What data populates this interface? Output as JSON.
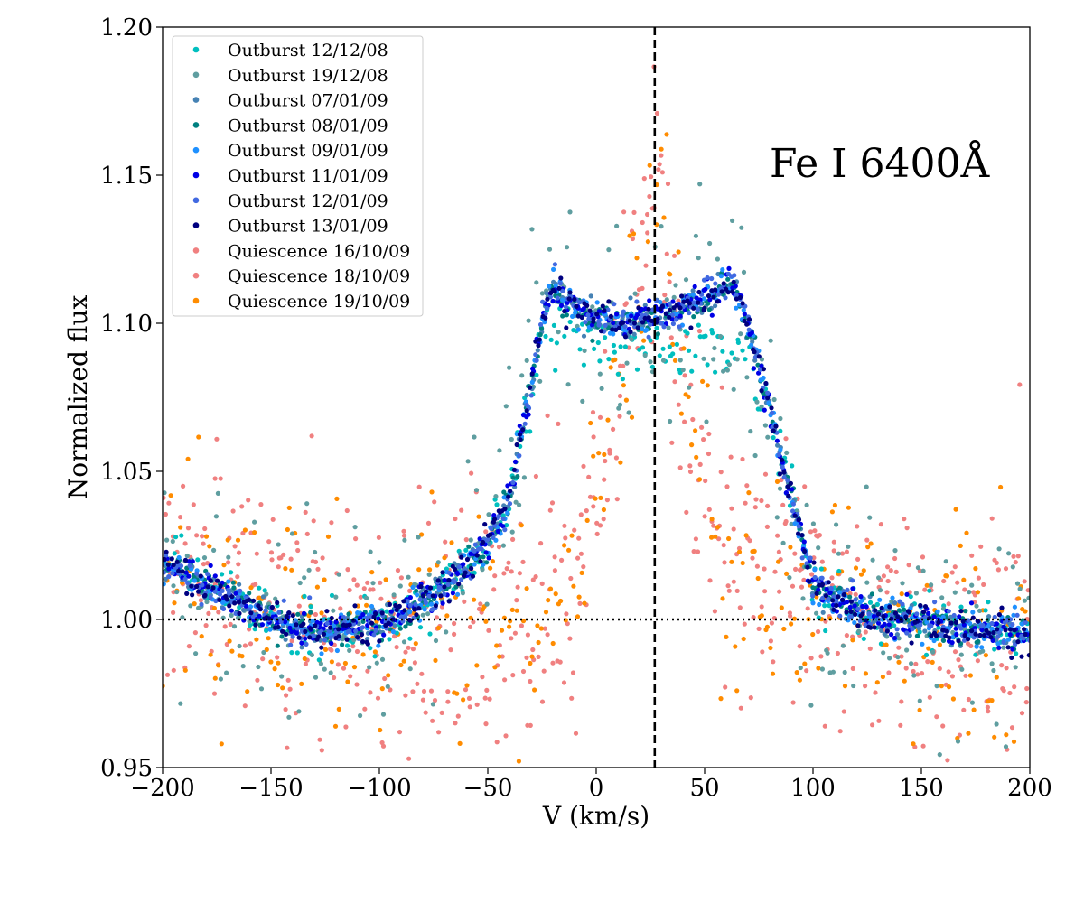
{
  "chart_data": {
    "type": "scatter",
    "title": "",
    "xlabel": "V (km/s)",
    "ylabel": "Normalized flux",
    "xlim": [
      -200,
      200
    ],
    "ylim": [
      0.95,
      1.2
    ],
    "xticks": [
      -200,
      -150,
      -100,
      -50,
      0,
      50,
      100,
      150,
      200
    ],
    "xtick_labels": [
      "−200",
      "−150",
      "−100",
      "−50",
      "0",
      "50",
      "100",
      "150",
      "200"
    ],
    "yticks": [
      0.95,
      1.0,
      1.05,
      1.1,
      1.15,
      1.2
    ],
    "ytick_labels": [
      "0.95",
      "1.00",
      "1.05",
      "1.10",
      "1.15",
      "1.20"
    ],
    "annotation": "Fe I 6400Å",
    "legend_position": "top-left",
    "reference_lines": [
      {
        "orientation": "vertical",
        "value": 27,
        "style": "dashed"
      },
      {
        "orientation": "horizontal",
        "value": 1.0,
        "style": "dotted"
      }
    ],
    "series": [
      {
        "name": "Outburst 12/12/08",
        "color": "#00bfbf",
        "group": "outburst",
        "noise": 0.005,
        "profile": [
          [
            -200,
            1.02
          ],
          [
            -150,
            1.0
          ],
          [
            -130,
            0.996
          ],
          [
            -100,
            0.998
          ],
          [
            -75,
            1.007
          ],
          [
            -50,
            1.025
          ],
          [
            -40,
            1.04
          ],
          [
            -30,
            1.075
          ],
          [
            -25,
            1.1
          ],
          [
            -10,
            1.098
          ],
          [
            10,
            1.093
          ],
          [
            30,
            1.09
          ],
          [
            50,
            1.092
          ],
          [
            70,
            1.09
          ],
          [
            85,
            1.06
          ],
          [
            100,
            1.012
          ],
          [
            120,
            1.002
          ],
          [
            160,
            0.998
          ],
          [
            200,
            0.995
          ]
        ]
      },
      {
        "name": "Outburst 19/12/08",
        "color": "#5f9ea0",
        "group": "outburst",
        "noise": 0.018,
        "profile": [
          [
            -200,
            1.02
          ],
          [
            -150,
            1.0
          ],
          [
            -130,
            0.996
          ],
          [
            -100,
            0.998
          ],
          [
            -75,
            1.007
          ],
          [
            -50,
            1.03
          ],
          [
            -40,
            1.05
          ],
          [
            -30,
            1.09
          ],
          [
            -25,
            1.11
          ],
          [
            -10,
            1.108
          ],
          [
            10,
            1.095
          ],
          [
            30,
            1.095
          ],
          [
            50,
            1.1
          ],
          [
            70,
            1.095
          ],
          [
            85,
            1.06
          ],
          [
            100,
            1.012
          ],
          [
            120,
            1.002
          ],
          [
            160,
            0.998
          ],
          [
            200,
            0.995
          ]
        ]
      },
      {
        "name": "Outburst 07/01/09",
        "color": "#4682b4",
        "group": "outburst",
        "noise": 0.003,
        "profile": [
          [
            -200,
            1.02
          ],
          [
            -150,
            1.0
          ],
          [
            -130,
            0.996
          ],
          [
            -100,
            0.998
          ],
          [
            -75,
            1.007
          ],
          [
            -50,
            1.025
          ],
          [
            -40,
            1.04
          ],
          [
            -30,
            1.08
          ],
          [
            -25,
            1.1
          ],
          [
            -20,
            1.112
          ],
          [
            -10,
            1.105
          ],
          [
            10,
            1.1
          ],
          [
            30,
            1.103
          ],
          [
            50,
            1.108
          ],
          [
            62,
            1.115
          ],
          [
            72,
            1.095
          ],
          [
            85,
            1.055
          ],
          [
            100,
            1.012
          ],
          [
            120,
            1.002
          ],
          [
            160,
            0.998
          ],
          [
            200,
            0.995
          ]
        ]
      },
      {
        "name": "Outburst 08/01/09",
        "color": "#008080",
        "group": "outburst",
        "noise": 0.003,
        "profile": [
          [
            -200,
            1.02
          ],
          [
            -150,
            1.0
          ],
          [
            -130,
            0.996
          ],
          [
            -100,
            0.998
          ],
          [
            -75,
            1.007
          ],
          [
            -50,
            1.025
          ],
          [
            -40,
            1.04
          ],
          [
            -30,
            1.08
          ],
          [
            -25,
            1.1
          ],
          [
            -20,
            1.112
          ],
          [
            -10,
            1.105
          ],
          [
            10,
            1.1
          ],
          [
            30,
            1.103
          ],
          [
            50,
            1.108
          ],
          [
            62,
            1.115
          ],
          [
            72,
            1.095
          ],
          [
            85,
            1.055
          ],
          [
            100,
            1.012
          ],
          [
            120,
            1.002
          ],
          [
            160,
            0.998
          ],
          [
            200,
            0.995
          ]
        ]
      },
      {
        "name": "Outburst 09/01/09",
        "color": "#1e90ff",
        "group": "outburst",
        "noise": 0.003,
        "profile": [
          [
            -200,
            1.02
          ],
          [
            -150,
            1.0
          ],
          [
            -130,
            0.996
          ],
          [
            -100,
            0.998
          ],
          [
            -75,
            1.007
          ],
          [
            -50,
            1.025
          ],
          [
            -40,
            1.04
          ],
          [
            -30,
            1.08
          ],
          [
            -25,
            1.1
          ],
          [
            -20,
            1.112
          ],
          [
            -10,
            1.105
          ],
          [
            10,
            1.1
          ],
          [
            30,
            1.103
          ],
          [
            50,
            1.108
          ],
          [
            62,
            1.115
          ],
          [
            72,
            1.095
          ],
          [
            85,
            1.055
          ],
          [
            100,
            1.012
          ],
          [
            120,
            1.002
          ],
          [
            160,
            0.998
          ],
          [
            200,
            0.995
          ]
        ]
      },
      {
        "name": "Outburst 11/01/09",
        "color": "#0000e6",
        "group": "outburst",
        "noise": 0.003,
        "profile": [
          [
            -200,
            1.02
          ],
          [
            -150,
            1.0
          ],
          [
            -130,
            0.996
          ],
          [
            -100,
            0.998
          ],
          [
            -75,
            1.007
          ],
          [
            -50,
            1.025
          ],
          [
            -40,
            1.04
          ],
          [
            -30,
            1.08
          ],
          [
            -25,
            1.1
          ],
          [
            -20,
            1.112
          ],
          [
            -10,
            1.105
          ],
          [
            10,
            1.1
          ],
          [
            30,
            1.103
          ],
          [
            50,
            1.108
          ],
          [
            62,
            1.115
          ],
          [
            72,
            1.095
          ],
          [
            85,
            1.055
          ],
          [
            100,
            1.012
          ],
          [
            120,
            1.002
          ],
          [
            160,
            0.998
          ],
          [
            200,
            0.995
          ]
        ]
      },
      {
        "name": "Outburst 12/01/09",
        "color": "#4169e1",
        "group": "outburst",
        "noise": 0.003,
        "profile": [
          [
            -200,
            1.02
          ],
          [
            -150,
            1.0
          ],
          [
            -130,
            0.996
          ],
          [
            -100,
            0.998
          ],
          [
            -75,
            1.007
          ],
          [
            -50,
            1.025
          ],
          [
            -40,
            1.04
          ],
          [
            -30,
            1.08
          ],
          [
            -25,
            1.1
          ],
          [
            -20,
            1.112
          ],
          [
            -10,
            1.105
          ],
          [
            10,
            1.1
          ],
          [
            30,
            1.103
          ],
          [
            50,
            1.108
          ],
          [
            62,
            1.115
          ],
          [
            72,
            1.095
          ],
          [
            85,
            1.055
          ],
          [
            100,
            1.012
          ],
          [
            120,
            1.002
          ],
          [
            160,
            0.998
          ],
          [
            200,
            0.995
          ]
        ]
      },
      {
        "name": "Outburst 13/01/09",
        "color": "#000080",
        "group": "outburst",
        "noise": 0.003,
        "profile": [
          [
            -200,
            1.02
          ],
          [
            -150,
            1.0
          ],
          [
            -130,
            0.996
          ],
          [
            -100,
            0.998
          ],
          [
            -75,
            1.007
          ],
          [
            -50,
            1.025
          ],
          [
            -40,
            1.04
          ],
          [
            -30,
            1.08
          ],
          [
            -25,
            1.1
          ],
          [
            -20,
            1.112
          ],
          [
            -10,
            1.105
          ],
          [
            10,
            1.1
          ],
          [
            30,
            1.103
          ],
          [
            50,
            1.108
          ],
          [
            62,
            1.115
          ],
          [
            72,
            1.095
          ],
          [
            85,
            1.055
          ],
          [
            100,
            1.012
          ],
          [
            120,
            1.002
          ],
          [
            160,
            0.998
          ],
          [
            200,
            0.995
          ]
        ]
      },
      {
        "name": "Quiescence 16/10/09",
        "color": "#f08080",
        "group": "quiescence",
        "noise": 0.022,
        "profile": [
          [
            -200,
            1.015
          ],
          [
            -150,
            1.003
          ],
          [
            -100,
            0.997
          ],
          [
            -60,
            1.0
          ],
          [
            -30,
            1.005
          ],
          [
            -10,
            1.015
          ],
          [
            0,
            1.04
          ],
          [
            10,
            1.075
          ],
          [
            20,
            1.11
          ],
          [
            27,
            1.16
          ],
          [
            32,
            1.13
          ],
          [
            40,
            1.08
          ],
          [
            50,
            1.05
          ],
          [
            60,
            1.02
          ],
          [
            100,
            1.01
          ],
          [
            140,
            0.995
          ],
          [
            200,
            0.995
          ]
        ]
      },
      {
        "name": "Quiescence 18/10/09",
        "color": "#f08080",
        "group": "quiescence",
        "noise": 0.022,
        "profile": [
          [
            -200,
            1.015
          ],
          [
            -150,
            1.003
          ],
          [
            -100,
            0.997
          ],
          [
            -60,
            1.0
          ],
          [
            -30,
            1.005
          ],
          [
            -10,
            1.015
          ],
          [
            0,
            1.04
          ],
          [
            10,
            1.075
          ],
          [
            20,
            1.11
          ],
          [
            27,
            1.16
          ],
          [
            32,
            1.13
          ],
          [
            40,
            1.08
          ],
          [
            50,
            1.05
          ],
          [
            60,
            1.02
          ],
          [
            100,
            1.01
          ],
          [
            140,
            0.995
          ],
          [
            200,
            0.995
          ]
        ]
      },
      {
        "name": "Quiescence 19/10/09",
        "color": "#ff8c00",
        "group": "quiescence",
        "noise": 0.018,
        "profile": [
          [
            -200,
            1.015
          ],
          [
            -150,
            1.003
          ],
          [
            -100,
            0.997
          ],
          [
            -60,
            1.0
          ],
          [
            -30,
            1.005
          ],
          [
            -10,
            1.015
          ],
          [
            0,
            1.04
          ],
          [
            10,
            1.075
          ],
          [
            20,
            1.11
          ],
          [
            27,
            1.17
          ],
          [
            32,
            1.13
          ],
          [
            40,
            1.08
          ],
          [
            50,
            1.05
          ],
          [
            60,
            1.02
          ],
          [
            100,
            1.01
          ],
          [
            140,
            0.995
          ],
          [
            200,
            0.995
          ]
        ]
      }
    ]
  }
}
